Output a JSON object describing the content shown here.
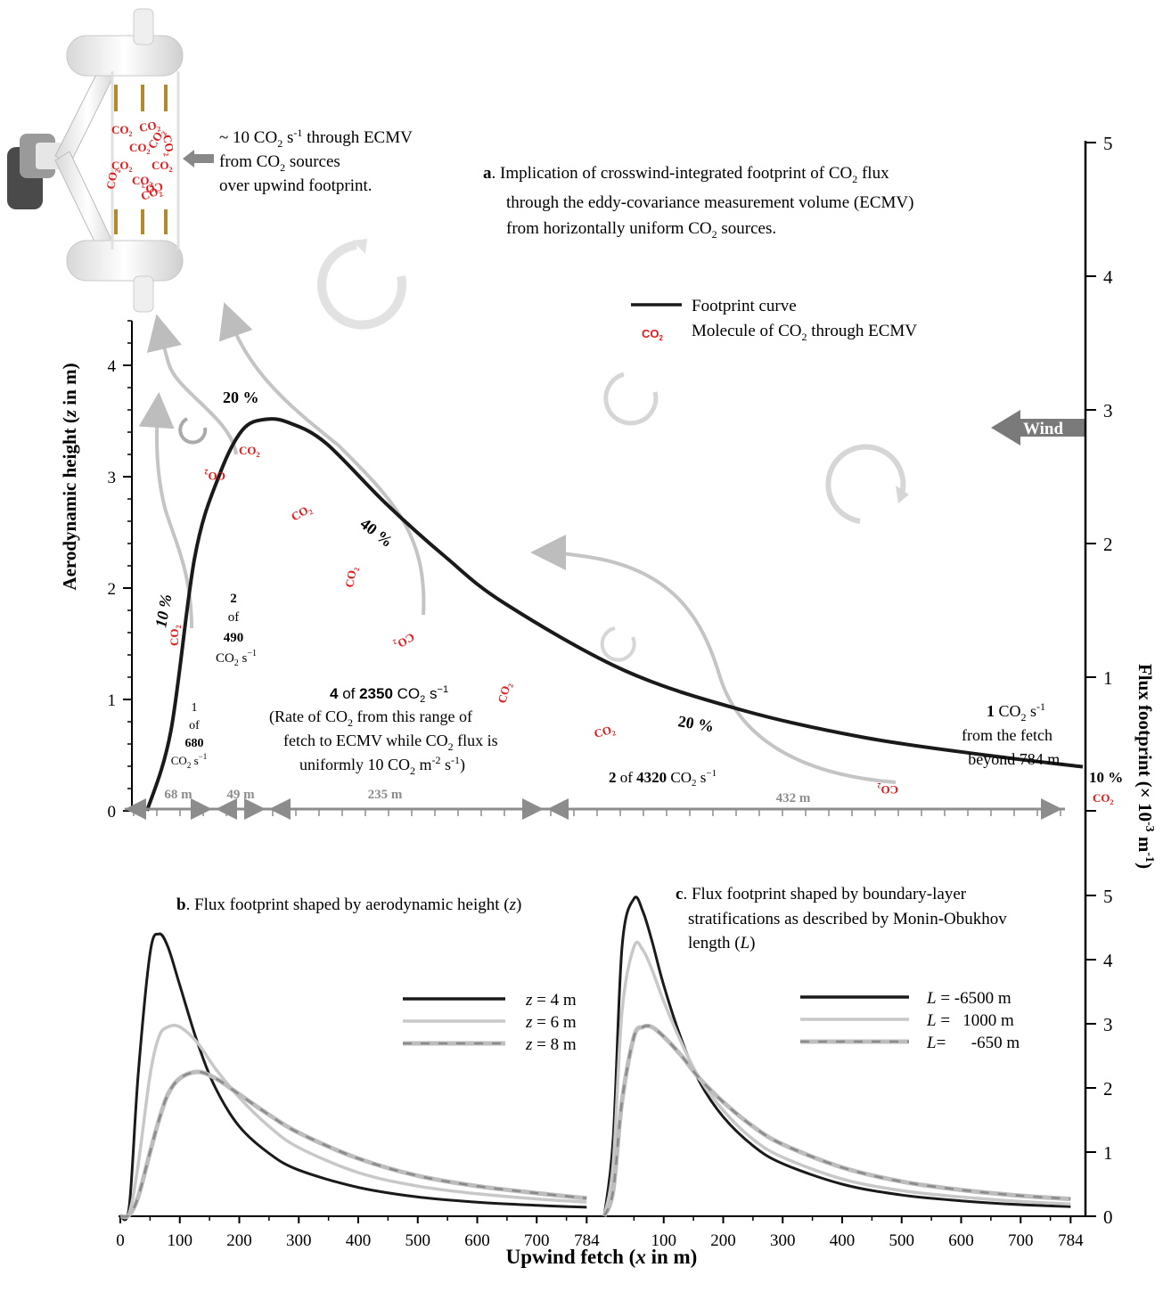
{
  "colors": {
    "curve": "#1a1a1a",
    "light": "#c8c8c8",
    "dashed_bg": "#bdbdbd",
    "dashed_fg": "#8a8a8a",
    "range": "#8c8c8c",
    "co2": "#e31818",
    "arrow": "#c4c4c4",
    "wind": "#7a7a7a"
  },
  "panel_a": {
    "title_letter": "a",
    "title_rest": ". Implication of crosswind-integrated footprint of CO",
    "title_sub": "2",
    "title_tail": " flux",
    "title_line2": "through the eddy-covariance measurement volume (ECMV)",
    "title_line3a": "from horizontally uniform CO",
    "title_line3b": "2",
    "title_line3c": " sources.",
    "legend_curve": "Footprint curve",
    "legend_molecule_pre": "Molecule of CO",
    "legend_molecule_sub": "2",
    "legend_molecule_post": " through ECMV",
    "instrument_text": {
      "l1a": "~ 10 CO",
      "l1b": "2",
      "l1c": " s",
      "l1d": "-1",
      "l1e": " through ECMV",
      "l2a": "from CO",
      "l2b": "2",
      "l2c": " sources",
      "l3": "over upwind footprint."
    },
    "wind_label": "Wind",
    "left_axis_label_pre": "Aerodynamic height (",
    "left_axis_label_var": "z",
    "left_axis_label_post": " in m)",
    "left_ticks": [
      "0",
      "1",
      "2",
      "3",
      "4"
    ],
    "right_axis_label": "Flux footprint (× 10",
    "right_axis_label_sup": "-3",
    "right_axis_label_post": " m",
    "right_axis_label_sup2": "-1",
    "right_axis_label_end": ")",
    "right_ticks_a": [
      "0",
      "1",
      "2",
      "3",
      "4",
      "5"
    ],
    "percent_labels": [
      "10 %",
      "20 %",
      "40 %",
      "20 %",
      "10 %"
    ],
    "ranges": [
      "68 m",
      "49 m",
      "235 m",
      "432 m"
    ],
    "annotations": {
      "r1_1": "1",
      "r1_2": "of",
      "r1_3": "680",
      "r1_4a": "CO",
      "r1_4b": "2",
      "r1_4c": " s",
      "r1_4d": "−1",
      "r2_1": "2",
      "r2_2": "of",
      "r2_3": "490",
      "r2_4a": "CO",
      "r2_4b": "2",
      "r2_4c": " s",
      "r2_4d": "−1",
      "r3_a": "4",
      "r3_b": " of ",
      "r3_c": "2350",
      "r3_d": " CO",
      "r3_e": "2",
      "r3_f": " s",
      "r3_g": "−1",
      "r3_l2a": "(Rate of CO",
      "r3_l2b": "2",
      "r3_l2c": " from this range of",
      "r3_l3": "fetch to ECMV while CO",
      "r3_l3b": "2",
      "r3_l3c": " flux is",
      "r3_l4a": "uniformly 10 CO",
      "r3_l4b": "2",
      "r3_l4c": " m",
      "r3_l4d": "-2",
      "r3_l4e": " s",
      "r3_l4f": "-1",
      "r3_l4g": ")",
      "r4_a": "2",
      "r4_b": " of ",
      "r4_c": "4320",
      "r4_d": " CO",
      "r4_e": "2",
      "r4_f": " s",
      "r4_g": "−1",
      "r5_a": "1",
      "r5_b": " CO",
      "r5_c": "2",
      "r5_d": "  s",
      "r5_e": "-1",
      "r5_l2": "from the fetch",
      "r5_l3": "beyond 784 m."
    },
    "co2_text": "CO",
    "co2_sub": "2"
  },
  "panel_b": {
    "title_letter": "b",
    "title_rest": ". Flux footprint shaped by aerodynamic height (",
    "title_var": "z",
    "title_end": ")",
    "legend": [
      {
        "var": "z",
        "text": " = 4 m"
      },
      {
        "var": "z",
        "text": " = 6 m"
      },
      {
        "var": "z",
        "text": " = 8 m"
      }
    ]
  },
  "panel_c": {
    "title_letter": "c",
    "title_rest": ". Flux footprint shaped by boundary-layer",
    "title_line2": "stratifications as described by Monin-Obukhov",
    "title_line3a": "length (",
    "title_line3b": "L",
    "title_line3c": ")",
    "legend": [
      {
        "var": "L",
        "text": " = -6500 m"
      },
      {
        "var": "L",
        "text": " =   1000 m"
      },
      {
        "var": "L",
        "text": "=      -650 m"
      }
    ]
  },
  "right_ticks_bc": [
    "0",
    "1",
    "2",
    "3",
    "4",
    "5"
  ],
  "x_ticks_b": [
    "0",
    "100",
    "200",
    "300",
    "400",
    "500",
    "600",
    "700",
    "784"
  ],
  "x_ticks_c": [
    "0",
    "100",
    "200",
    "300",
    "400",
    "500",
    "600",
    "700",
    "784"
  ],
  "x_axis_label_pre": "Upwind fetch (",
  "x_axis_label_var": "x",
  "x_axis_label_post": " in m)",
  "chart_data": [
    {
      "type": "line",
      "panel": "a",
      "series": [
        {
          "name": "Footprint curve",
          "x": [
            0,
            20,
            40,
            60,
            80,
            100,
            120,
            150,
            200,
            250,
            300,
            400,
            500,
            600,
            700,
            784
          ],
          "values": [
            0,
            0.6,
            1.9,
            2.5,
            2.85,
            2.93,
            2.9,
            2.75,
            2.3,
            1.9,
            1.55,
            1.05,
            0.75,
            0.55,
            0.42,
            0.33
          ]
        }
      ],
      "ylim": [
        0,
        5
      ]
    },
    {
      "type": "line",
      "panel": "b",
      "x": [
        0,
        15,
        30,
        50,
        65,
        80,
        100,
        130,
        160,
        200,
        250,
        300,
        400,
        500,
        600,
        700,
        784
      ],
      "series": [
        {
          "name": "z = 4 m",
          "values": [
            0,
            0.15,
            2.2,
            4.1,
            4.4,
            4.2,
            3.6,
            2.7,
            2.0,
            1.4,
            0.98,
            0.72,
            0.45,
            0.3,
            0.22,
            0.17,
            0.14
          ]
        },
        {
          "name": "z = 6 m",
          "values": [
            0,
            0.05,
            0.8,
            2.2,
            2.8,
            2.95,
            2.95,
            2.7,
            2.3,
            1.85,
            1.4,
            1.07,
            0.68,
            0.47,
            0.35,
            0.27,
            0.22
          ]
        },
        {
          "name": "z = 8 m",
          "values": [
            0,
            0.02,
            0.3,
            1.0,
            1.5,
            1.9,
            2.15,
            2.25,
            2.15,
            1.9,
            1.58,
            1.3,
            0.9,
            0.63,
            0.47,
            0.36,
            0.28
          ]
        }
      ],
      "xlim": [
        0,
        800
      ],
      "ylim": [
        0,
        5
      ]
    },
    {
      "type": "line",
      "panel": "c",
      "x": [
        0,
        15,
        30,
        50,
        65,
        80,
        100,
        130,
        160,
        200,
        250,
        300,
        400,
        500,
        600,
        700,
        784
      ],
      "series": [
        {
          "name": "L = -6500 m",
          "values": [
            0,
            1.2,
            4.2,
            4.95,
            4.75,
            4.3,
            3.6,
            2.75,
            2.1,
            1.55,
            1.1,
            0.82,
            0.5,
            0.33,
            0.24,
            0.18,
            0.15
          ]
        },
        {
          "name": "L = 1000 m",
          "values": [
            0,
            0.8,
            3.2,
            4.2,
            4.15,
            3.85,
            3.35,
            2.7,
            2.15,
            1.65,
            1.2,
            0.92,
            0.58,
            0.4,
            0.3,
            0.23,
            0.19
          ]
        },
        {
          "name": "L = -650 m",
          "values": [
            0,
            0.4,
            1.8,
            2.8,
            2.95,
            2.95,
            2.8,
            2.5,
            2.15,
            1.78,
            1.4,
            1.12,
            0.76,
            0.54,
            0.41,
            0.32,
            0.27
          ]
        }
      ],
      "xlim": [
        0,
        800
      ],
      "ylim": [
        0,
        5
      ]
    }
  ]
}
